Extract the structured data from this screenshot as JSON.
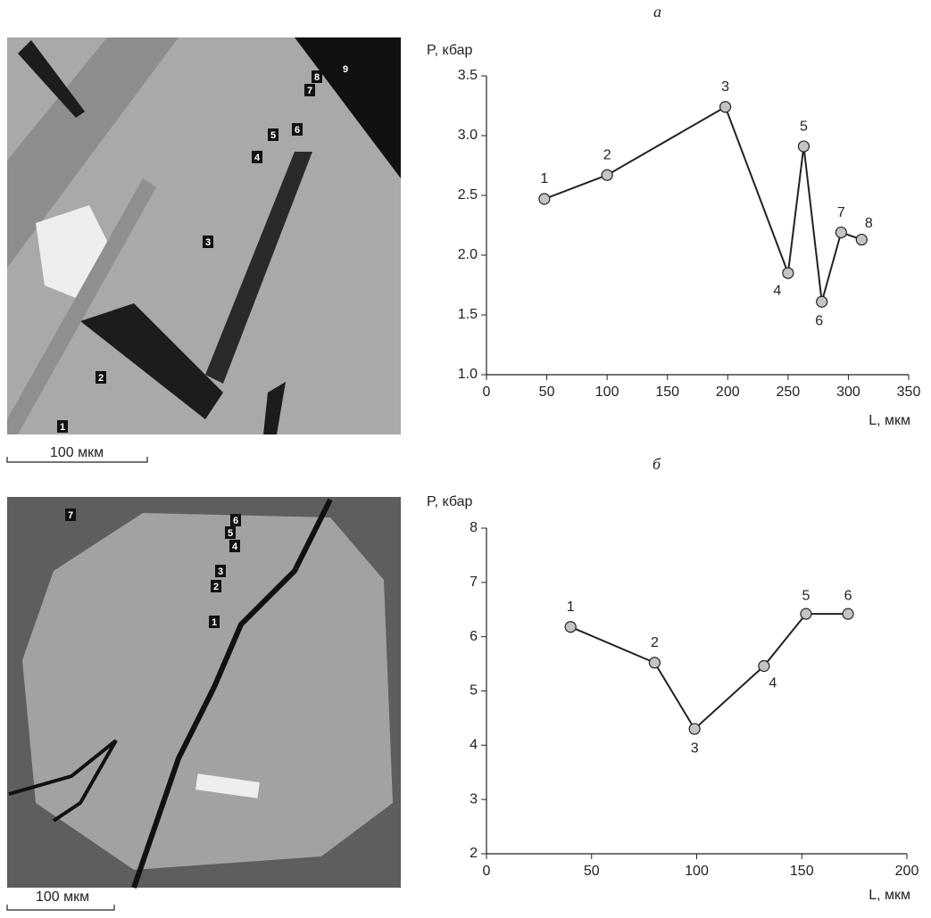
{
  "chart_data": [
    {
      "type": "line",
      "label": "а",
      "ylabel": "P, кбар",
      "xlabel": "L, мкм",
      "x": [
        48,
        100,
        198,
        250,
        263,
        278,
        294,
        311
      ],
      "values": [
        2.47,
        2.67,
        3.24,
        1.85,
        2.91,
        1.61,
        2.19,
        2.13
      ],
      "point_labels": [
        "1",
        "2",
        "3",
        "4",
        "5",
        "6",
        "7",
        "8"
      ],
      "color": "#222222",
      "marker_color": "#c4c4c4",
      "xlim": [
        0,
        350
      ],
      "xticks": [
        0,
        50,
        100,
        150,
        200,
        250,
        300,
        350
      ],
      "ylim": [
        1,
        3.5
      ],
      "yticks": [
        {
          "value": 1,
          "label": "1.0"
        },
        1.5,
        {
          "value": 2,
          "label": "2.0"
        },
        2.5,
        {
          "value": 3,
          "label": "3.0"
        },
        3.5
      ]
    },
    {
      "type": "line",
      "label": "б",
      "ylabel": "P, кбар",
      "xlabel": "L, мкм",
      "x": [
        40,
        80,
        99,
        132,
        152,
        172
      ],
      "values": [
        6.18,
        5.52,
        4.3,
        5.46,
        6.42,
        6.42
      ],
      "point_labels": [
        "1",
        "2",
        "3",
        "4",
        "5",
        "6"
      ],
      "color": "#222222",
      "marker_color": "#c4c4c4",
      "xlim": [
        0,
        200
      ],
      "xticks": [
        0,
        50,
        100,
        150,
        200
      ],
      "ylim": [
        2,
        8
      ],
      "yticks": [
        2,
        3,
        4,
        5,
        6,
        7,
        8
      ]
    }
  ],
  "images": [
    {
      "scale_bar": "100 мкм",
      "points": [
        "1",
        "2",
        "3",
        "4",
        "5",
        "6",
        "7",
        "8",
        "9"
      ]
    },
    {
      "scale_bar": "100 мкм",
      "points": [
        "1",
        "2",
        "3",
        "4",
        "5",
        "6",
        "7"
      ]
    }
  ]
}
